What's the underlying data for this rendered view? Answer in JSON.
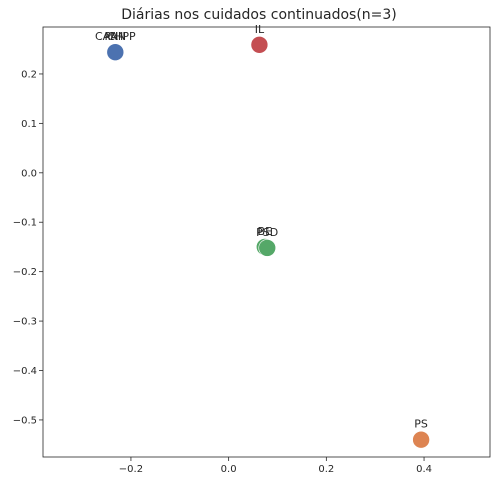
{
  "chart_data": {
    "type": "scatter",
    "title": "Diárias nos cuidados continuados(n=3)",
    "xlabel": "",
    "ylabel": "",
    "xlim": [
      -0.38,
      0.535
    ],
    "ylim": [
      -0.575,
      0.295
    ],
    "xticks": [
      -0.2,
      0.0,
      0.2,
      0.4
    ],
    "xtick_labels": [
      "−0.2",
      "0.0",
      "0.2",
      "0.4"
    ],
    "yticks": [
      0.2,
      0.1,
      0.0,
      -0.1,
      -0.2,
      -0.3,
      -0.4,
      -0.5
    ],
    "ytick_labels": [
      "0.2",
      "0.1",
      "0.0",
      "−0.1",
      "−0.2",
      "−0.3",
      "−0.4",
      "−0.5"
    ],
    "grid": false,
    "legend": false,
    "points": [
      {
        "x": -0.232,
        "y": 0.244,
        "color": "#4c72b0"
      },
      {
        "x": -0.232,
        "y": 0.244,
        "color": "#4c72b0"
      },
      {
        "x": -0.232,
        "y": 0.244,
        "color": "#4c72b0"
      },
      {
        "x": 0.063,
        "y": 0.259,
        "color": "#c44e52"
      },
      {
        "x": 0.074,
        "y": -0.15,
        "color": "#55a868"
      },
      {
        "x": 0.079,
        "y": -0.152,
        "color": "#55a868"
      },
      {
        "x": 0.394,
        "y": -0.54,
        "color": "#dd8452"
      }
    ],
    "labels": [
      {
        "text": "PAN",
        "x": -0.232,
        "y": 0.244
      },
      {
        "text": "CAN-PP",
        "x": -0.232,
        "y": 0.244
      },
      {
        "text": "CH",
        "x": -0.232,
        "y": 0.244
      },
      {
        "text": "IL",
        "x": 0.063,
        "y": 0.259
      },
      {
        "text": "BE",
        "x": 0.074,
        "y": -0.15
      },
      {
        "text": "PSD",
        "x": 0.079,
        "y": -0.152
      },
      {
        "text": "PS",
        "x": 0.394,
        "y": -0.54
      }
    ]
  }
}
